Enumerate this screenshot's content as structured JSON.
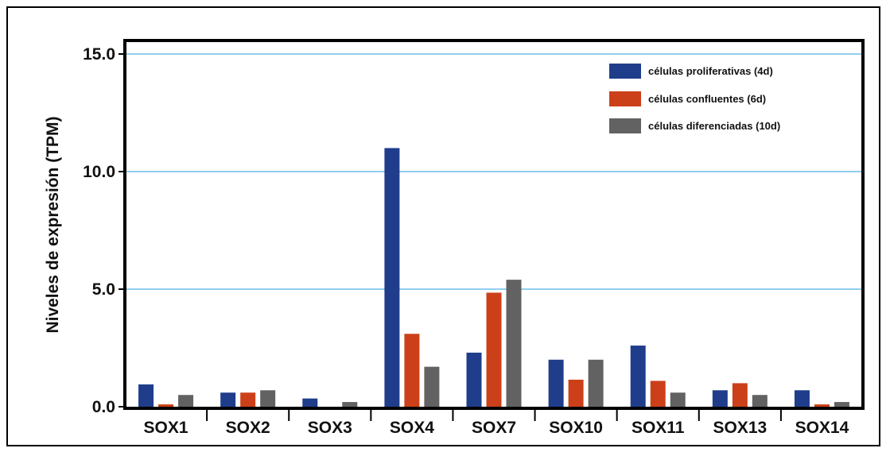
{
  "colors": {
    "proliferativas": "#1f3d8b",
    "confluentes": "#cc4019",
    "diferenciadas": "#626262",
    "gridline": "#8fcfee",
    "axis": "#000000"
  },
  "chart_data": {
    "type": "bar",
    "title": "",
    "xlabel": "",
    "ylabel": "Niveles de expresión (TPM)",
    "ylim": [
      0,
      15
    ],
    "yticks": [
      0,
      5,
      10,
      15
    ],
    "ytick_labels": [
      "0.0",
      "5.0",
      "10.0",
      "15.0"
    ],
    "grid": "horizontal",
    "legend_position": "top-right",
    "categories": [
      "SOX1",
      "SOX2",
      "SOX3",
      "SOX4",
      "SOX7",
      "SOX10",
      "SOX11",
      "SOX13",
      "SOX14"
    ],
    "series": [
      {
        "name": "células proliferativas (4d)",
        "color": "#1f3d8b",
        "values": [
          0.95,
          0.6,
          0.35,
          11.0,
          2.3,
          2.0,
          2.6,
          0.7,
          0.7
        ]
      },
      {
        "name": "células confluentes (6d)",
        "color": "#cc4019",
        "values": [
          0.1,
          0.6,
          0.0,
          3.1,
          4.85,
          1.15,
          1.1,
          1.0,
          0.1
        ]
      },
      {
        "name": "células diferenciadas (10d)",
        "color": "#626262",
        "values": [
          0.5,
          0.7,
          0.2,
          1.7,
          5.4,
          2.0,
          0.6,
          0.5,
          0.2
        ]
      }
    ]
  }
}
